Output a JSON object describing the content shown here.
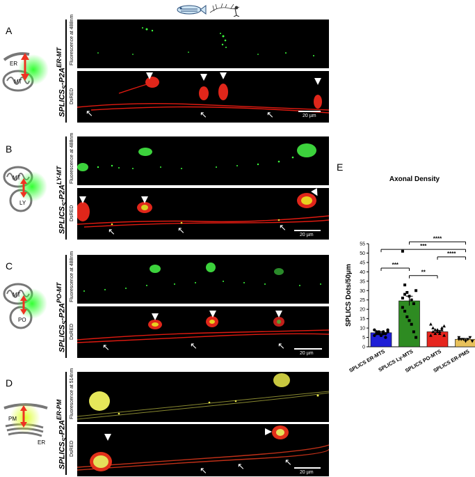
{
  "panels": [
    {
      "letter": "A",
      "construct": "SPLICS",
      "sub": "S",
      "suffix": "-P2A",
      "sup": "ER-MT",
      "top_channel": "Fluorescence at 488nm",
      "bottom_channel": "DsRED",
      "scale": "20 µm",
      "diagram_labels": [
        "ER",
        "MT"
      ]
    },
    {
      "letter": "B",
      "construct": "SPLICS",
      "sub": "S",
      "suffix": "-P2A",
      "sup": "LY-MT",
      "top_channel": "Fluorescence at 488nm",
      "bottom_channel": "DsRED",
      "scale": "20 µm",
      "diagram_labels": [
        "MT",
        "LY"
      ]
    },
    {
      "letter": "C",
      "construct": "SPLICS",
      "sub": "S",
      "suffix": "-P2A",
      "sup": "PO-MT",
      "top_channel": "Fluorescence at 488nm",
      "bottom_channel": "DsRED",
      "scale": "20 µm",
      "diagram_labels": [
        "MT",
        "PO"
      ]
    },
    {
      "letter": "D",
      "construct": "SPLICS",
      "sub": "S",
      "suffix": "-P2A",
      "sup": "ER-PM",
      "top_channel": "Fluorescence at 514nm",
      "bottom_channel": "DsRED",
      "scale": "20 µm",
      "diagram_labels": [
        "PM",
        "ER"
      ]
    }
  ],
  "panel_e": {
    "letter": "E"
  },
  "chart_data": {
    "type": "bar",
    "title": "Axonal Density",
    "ylabel": "SPLICS Dots/50μm",
    "ylim": [
      0,
      55
    ],
    "yticks": [
      0,
      5,
      10,
      15,
      20,
      25,
      30,
      35,
      40,
      45,
      50,
      55
    ],
    "categories": [
      "SPLICS ER-MTS",
      "SPLICS Ly-MTS",
      "SPLICS PO-MTS",
      "SPLICS ER-PMS"
    ],
    "values": [
      7.5,
      24.5,
      8,
      4
    ],
    "errors": [
      0.7,
      2.5,
      0.8,
      0.4
    ],
    "colors": [
      "#1f1fd6",
      "#2e8b22",
      "#e6261f",
      "#e8c15a"
    ],
    "points": [
      [
        9,
        8,
        7,
        6,
        8,
        7,
        9,
        6,
        7,
        8,
        6,
        7,
        5,
        8
      ],
      [
        51,
        33,
        29,
        27,
        25,
        23,
        30,
        21,
        19,
        16,
        14,
        12,
        8,
        5,
        26,
        28
      ],
      [
        12,
        10,
        9,
        8,
        7,
        9,
        11,
        6,
        8,
        7,
        9,
        8,
        10,
        6
      ],
      [
        5,
        4,
        4,
        3,
        4,
        5,
        3,
        4
      ]
    ],
    "significance": [
      {
        "from": 1,
        "to": 3,
        "label": "****"
      },
      {
        "from": 0,
        "to": 3,
        "label": "***"
      },
      {
        "from": 2,
        "to": 3,
        "label": "****"
      },
      {
        "from": 0,
        "to": 1,
        "label": "***"
      },
      {
        "from": 1,
        "to": 2,
        "label": "**"
      }
    ]
  }
}
